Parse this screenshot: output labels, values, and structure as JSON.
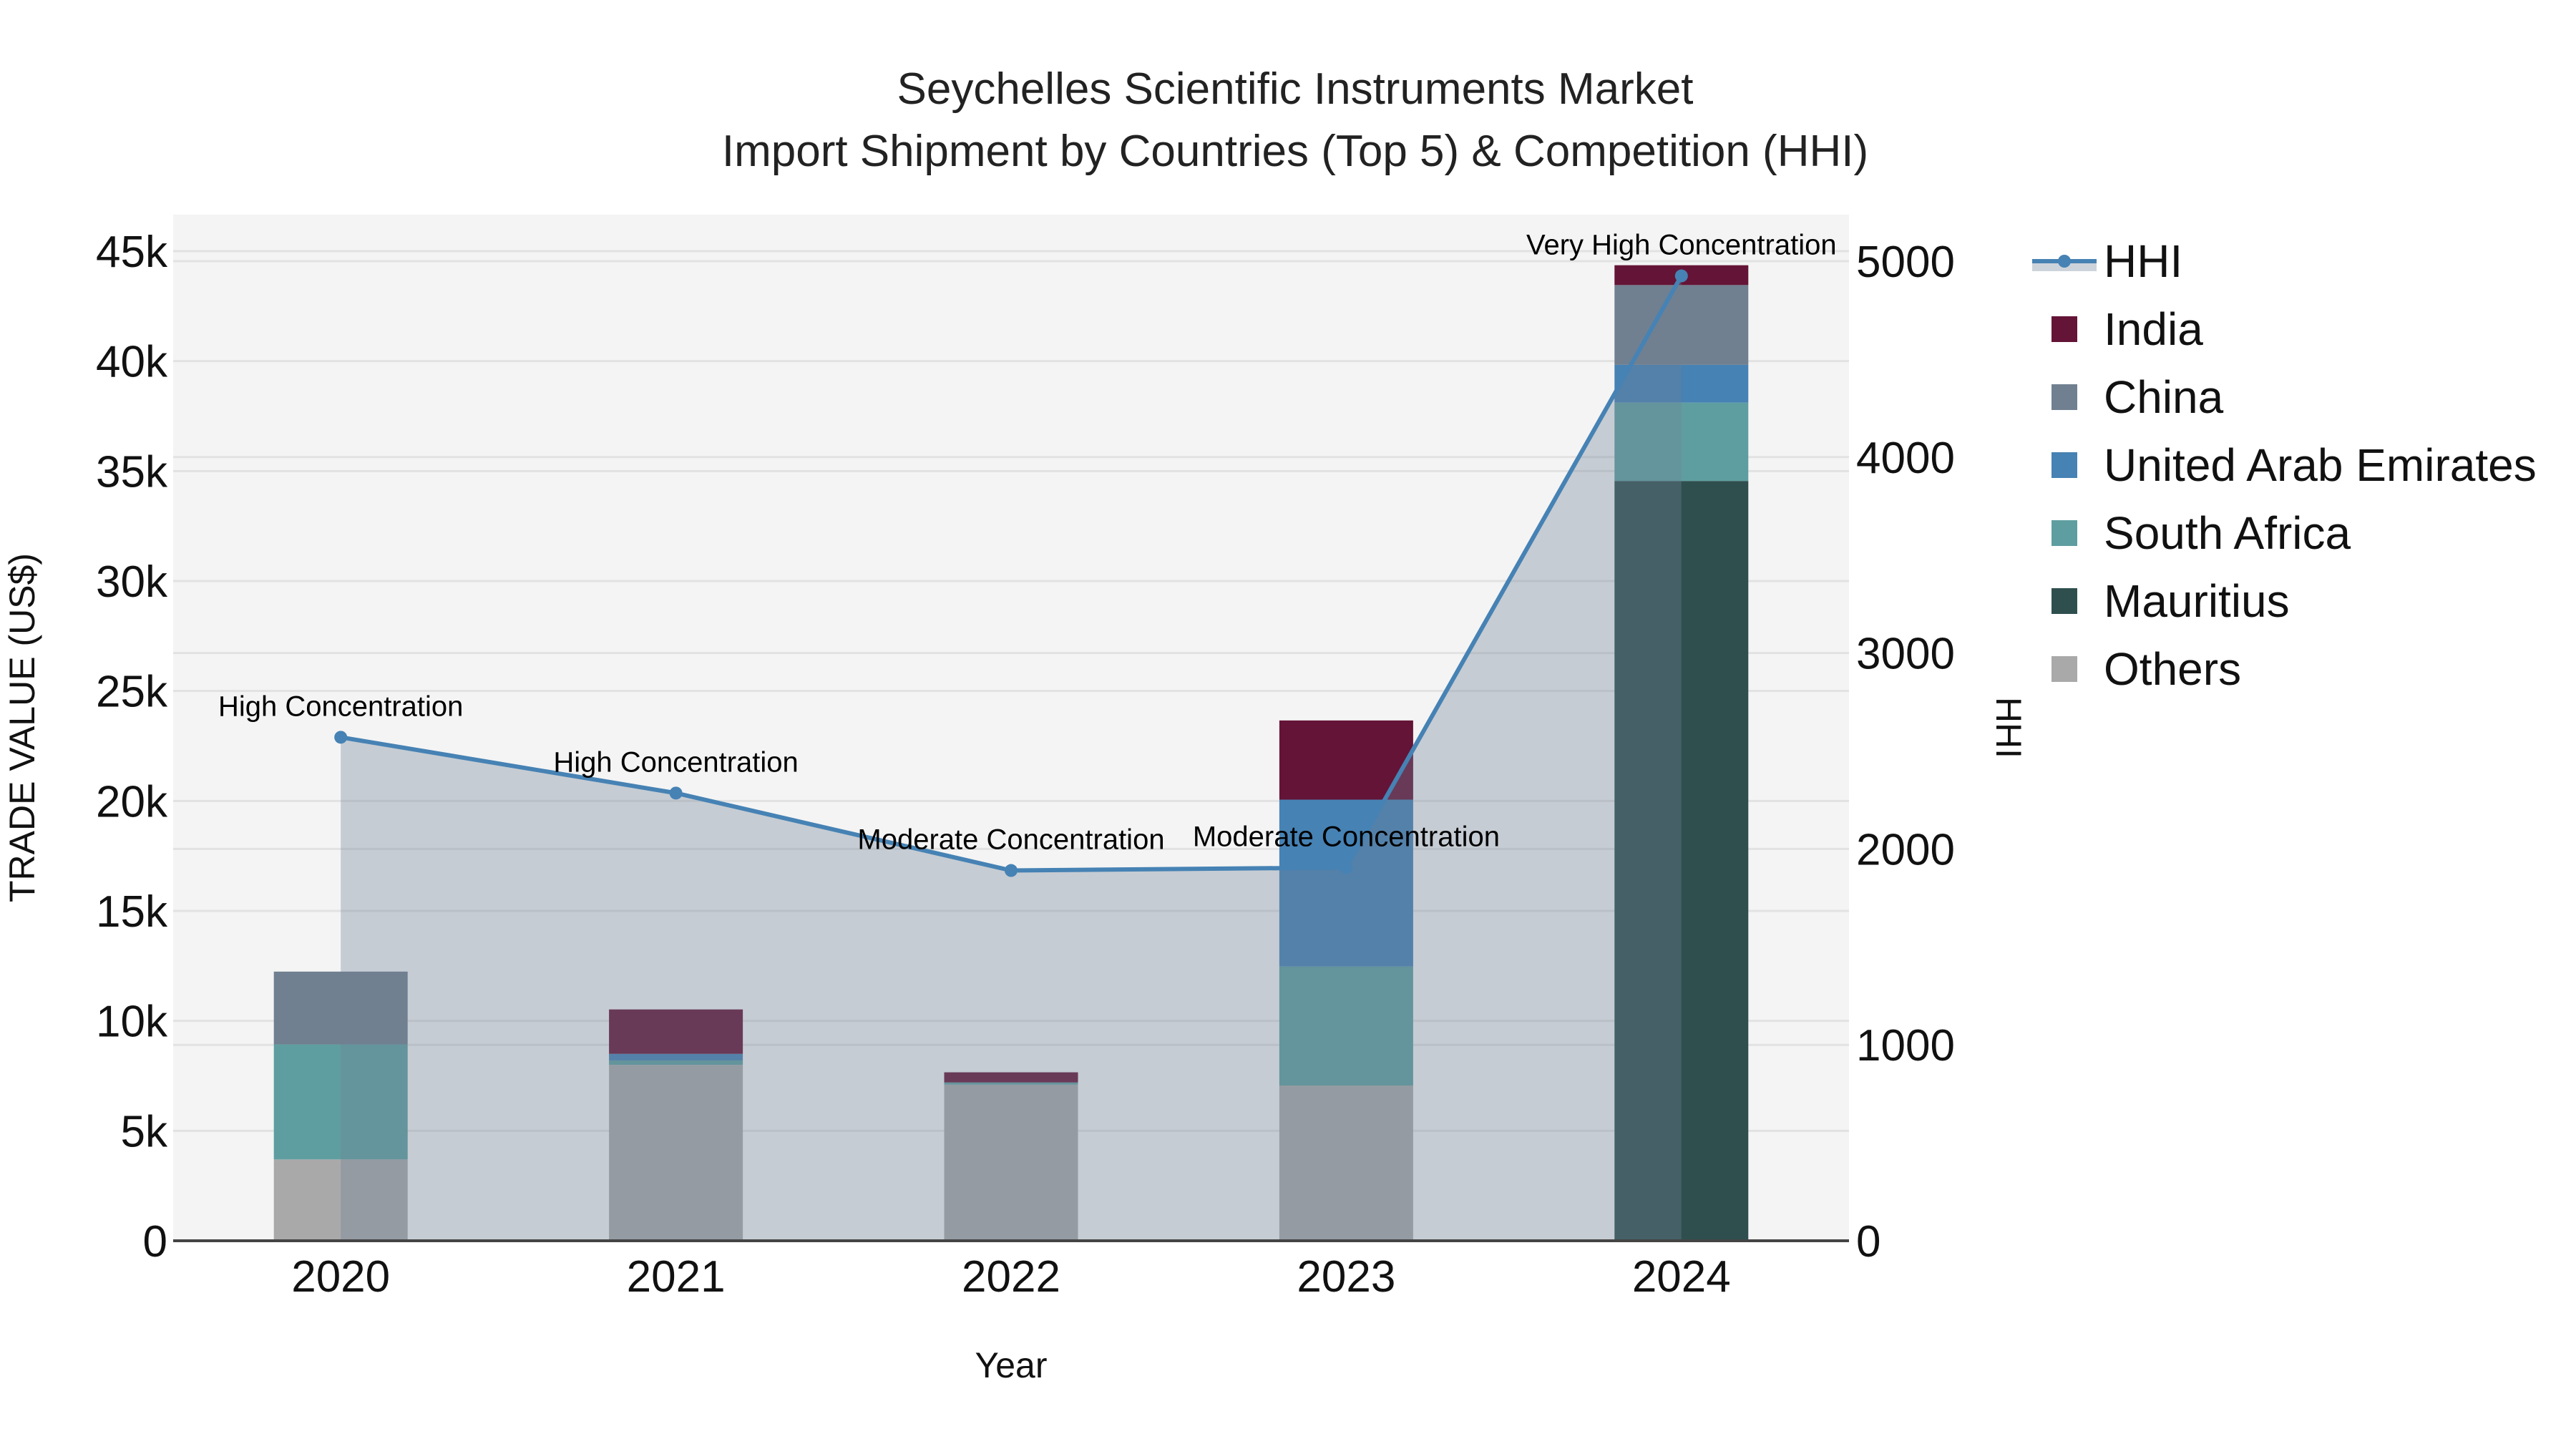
{
  "chart_data": {
    "type": "bar",
    "subtype": "stacked bar + line (secondary axis) with area fill",
    "title": "Seychelles Scientific Instruments Market",
    "subtitle": "Import Shipment by Countries (Top 5) & Competition (HHI)",
    "xlabel": "Year",
    "ylabel": "TRADE VALUE (US$)",
    "y2label": "HHI",
    "categories": [
      "2020",
      "2021",
      "2022",
      "2023",
      "2024"
    ],
    "ylim": [
      0,
      46500
    ],
    "y_ticks": [
      0,
      5000,
      10000,
      15000,
      20000,
      25000,
      30000,
      35000,
      40000,
      45000
    ],
    "y_tick_labels": [
      "0",
      "5k",
      "10k",
      "15k",
      "20k",
      "25k",
      "30k",
      "35k",
      "40k",
      "45k"
    ],
    "y2lim": [
      0,
      5200
    ],
    "y2_ticks": [
      0,
      1000,
      2000,
      3000,
      4000,
      5000
    ],
    "y2_tick_labels": [
      "0",
      "1000",
      "2000",
      "3000",
      "4000",
      "5000"
    ],
    "grid": true,
    "legend_position": "right",
    "series": [
      {
        "name": "Others",
        "color": "#A9A9A9",
        "values": [
          3700,
          8000,
          7100,
          7060,
          50
        ]
      },
      {
        "name": "Mauritius",
        "color": "#2F4F4F",
        "values": [
          0,
          0,
          0,
          0,
          34500
        ]
      },
      {
        "name": "South Africa",
        "color": "#5F9EA0",
        "values": [
          5230,
          200,
          100,
          5410,
          3560
        ]
      },
      {
        "name": "United Arab Emirates",
        "color": "#4682B4",
        "values": [
          0,
          300,
          0,
          7590,
          1720
        ]
      },
      {
        "name": "China",
        "color": "#708090",
        "values": [
          3310,
          0,
          0,
          0,
          3630
        ]
      },
      {
        "name": "India",
        "color": "#641436",
        "values": [
          0,
          2020,
          460,
          3600,
          900
        ]
      }
    ],
    "line_series": {
      "name": "HHI",
      "color": "#4682B4",
      "fill_color": "rgba(112,128,150,0.35)",
      "axis": "y2",
      "values": [
        2570,
        2285,
        1890,
        1905,
        4925
      ],
      "annotations": [
        "High Concentration",
        "High Concentration",
        "Moderate Concentration",
        "Moderate Concentration",
        "Very High Concentration"
      ]
    }
  },
  "legend": {
    "items": [
      {
        "label": "HHI",
        "type": "line",
        "color": "#4682B4"
      },
      {
        "label": "India",
        "type": "box",
        "color": "#641436"
      },
      {
        "label": "China",
        "type": "box",
        "color": "#708090"
      },
      {
        "label": "United Arab Emirates",
        "type": "box",
        "color": "#4682B4"
      },
      {
        "label": "South Africa",
        "type": "box",
        "color": "#5F9EA0"
      },
      {
        "label": "Mauritius",
        "type": "box",
        "color": "#2F4F4F"
      },
      {
        "label": "Others",
        "type": "box",
        "color": "#A9A9A9"
      }
    ]
  },
  "colors": {
    "plot_bg": "#F4F4F4",
    "grid": "#E2E2E2",
    "axis_line": "#444444"
  }
}
